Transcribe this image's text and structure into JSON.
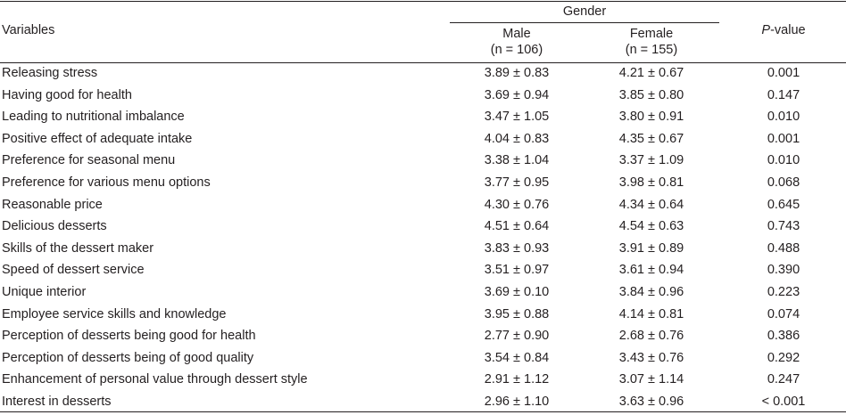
{
  "header": {
    "variables_label": "Variables",
    "gender_label": "Gender",
    "male_label": "Male",
    "male_n": "(n = 106)",
    "female_label": "Female",
    "female_n": "(n = 155)",
    "pvalue_p": "P",
    "pvalue_suffix": "-value"
  },
  "rows": [
    {
      "variable": "Releasing stress",
      "male": "3.89 ± 0.83",
      "female": "4.21 ± 0.67",
      "p": "0.001"
    },
    {
      "variable": "Having good for health",
      "male": "3.69 ± 0.94",
      "female": "3.85 ± 0.80",
      "p": "0.147"
    },
    {
      "variable": "Leading to nutritional imbalance",
      "male": "3.47 ± 1.05",
      "female": "3.80 ± 0.91",
      "p": "0.010"
    },
    {
      "variable": "Positive effect of adequate intake",
      "male": "4.04 ± 0.83",
      "female": "4.35 ± 0.67",
      "p": "0.001"
    },
    {
      "variable": "Preference for seasonal menu",
      "male": "3.38 ± 1.04",
      "female": "3.37 ± 1.09",
      "p": "0.010"
    },
    {
      "variable": "Preference for various menu options",
      "male": "3.77 ± 0.95",
      "female": "3.98 ± 0.81",
      "p": "0.068"
    },
    {
      "variable": "Reasonable price",
      "male": "4.30 ± 0.76",
      "female": "4.34 ± 0.64",
      "p": "0.645"
    },
    {
      "variable": "Delicious desserts",
      "male": "4.51 ± 0.64",
      "female": "4.54 ± 0.63",
      "p": "0.743"
    },
    {
      "variable": "Skills of the dessert maker",
      "male": "3.83 ± 0.93",
      "female": "3.91 ± 0.89",
      "p": "0.488"
    },
    {
      "variable": "Speed of dessert service",
      "male": "3.51 ± 0.97",
      "female": "3.61 ± 0.94",
      "p": "0.390"
    },
    {
      "variable": "Unique interior",
      "male": "3.69 ± 0.10",
      "female": "3.84 ± 0.96",
      "p": "0.223"
    },
    {
      "variable": "Employee service skills and knowledge",
      "male": "3.95 ± 0.88",
      "female": "4.14 ± 0.81",
      "p": "0.074"
    },
    {
      "variable": "Perception of desserts being good for health",
      "male": "2.77 ± 0.90",
      "female": "2.68 ± 0.76",
      "p": "0.386"
    },
    {
      "variable": "Perception of desserts being of good quality",
      "male": "3.54 ± 0.84",
      "female": "3.43 ± 0.76",
      "p": "0.292"
    },
    {
      "variable": "Enhancement of personal value through dessert style",
      "male": "2.91 ± 1.12",
      "female": "3.07 ± 1.14",
      "p": "0.247"
    },
    {
      "variable": "Interest in desserts",
      "male": "2.96 ± 1.10",
      "female": "3.63 ± 0.96",
      "p": "< 0.001"
    }
  ]
}
